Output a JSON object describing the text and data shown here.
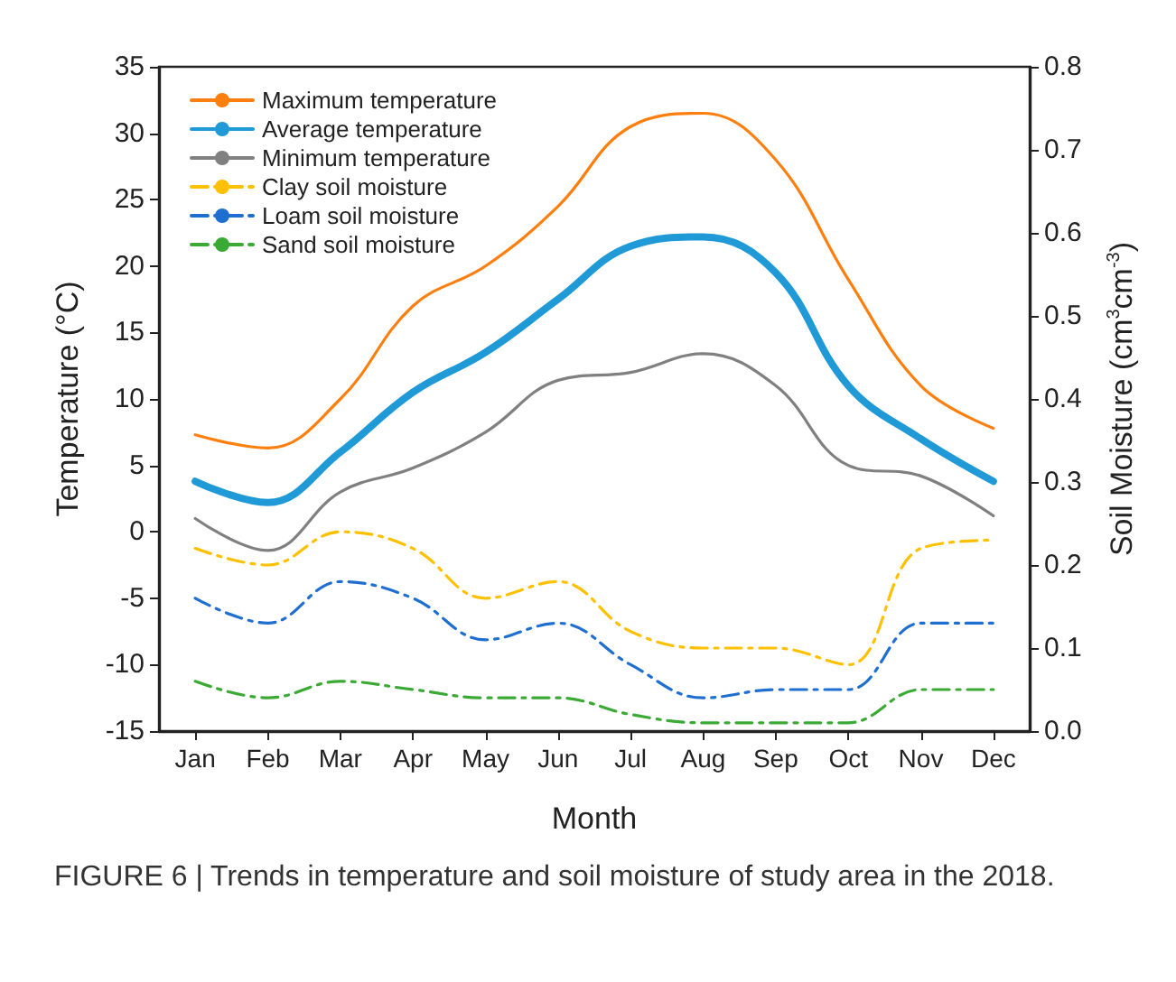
{
  "chart_data": {
    "type": "line",
    "xlabel": "Month",
    "ylabel": "Temperature (°C)",
    "y2label": "Soil Moisture (cm$^{3}$cm$^{-3}$)",
    "annotations": [
      "FIGURE 6 | Trends in temperature and soil moisture of study area in the 2018."
    ],
    "categories": [
      "Jan",
      "Feb",
      "Mar",
      "Apr",
      "May",
      "Jun",
      "Jul",
      "Aug",
      "Sep",
      "Oct",
      "Nov",
      "Dec"
    ],
    "ylim": [
      -15,
      35
    ],
    "yticks": [
      -15,
      -10,
      -5,
      0,
      5,
      10,
      15,
      20,
      25,
      30,
      35
    ],
    "y2lim": [
      0,
      0.8
    ],
    "y2ticks": [
      {
        "value": 0,
        "label": "0.0"
      },
      0.1,
      0.2,
      0.3,
      0.4,
      0.5,
      0.6,
      0.7,
      0.8
    ],
    "grid": false,
    "legend": "top left",
    "marker": "none",
    "series": [
      {
        "name": "Maximum temperature",
        "color": "#ff7f0e",
        "line_style": "solid",
        "values": [
          7.3,
          6.3,
          10,
          17,
          20,
          24.5,
          30.5,
          31.5,
          28,
          19,
          11,
          7.8
        ]
      },
      {
        "name": "Average temperature",
        "color": "#1f9ad6",
        "line_style": "solid",
        "values": [
          3.8,
          2.2,
          6,
          10.5,
          13.5,
          17.5,
          21.5,
          22.2,
          19.5,
          11,
          7,
          3.8
        ]
      },
      {
        "name": "Minimum temperature",
        "color": "#808080",
        "line_style": "solid",
        "values": [
          1,
          -1.4,
          3,
          4.8,
          7.5,
          11.4,
          12,
          13.4,
          11,
          5,
          4.2,
          1.2
        ]
      },
      {
        "name": "Clay soil moisture",
        "color": "#ffc000",
        "line_style": "dashed",
        "axis": "y2",
        "values": [
          0.22,
          0.2,
          0.24,
          0.22,
          0.16,
          0.18,
          0.12,
          0.1,
          0.1,
          0.08,
          0.22,
          0.23
        ]
      },
      {
        "name": "Loam soil moisture",
        "color": "#1f6fd0",
        "line_style": "dashed",
        "axis": "y2",
        "values": [
          0.16,
          0.13,
          0.18,
          0.16,
          0.11,
          0.13,
          0.08,
          0.04,
          0.05,
          0.05,
          0.13,
          0.13
        ]
      },
      {
        "name": "Sand soil moisture",
        "color": "#3aaa35",
        "line_style": "dashed",
        "axis": "y2",
        "values": [
          0.06,
          0.04,
          0.06,
          0.05,
          0.04,
          0.04,
          0.02,
          0.01,
          0.01,
          0.01,
          0.05,
          0.05
        ]
      }
    ]
  }
}
